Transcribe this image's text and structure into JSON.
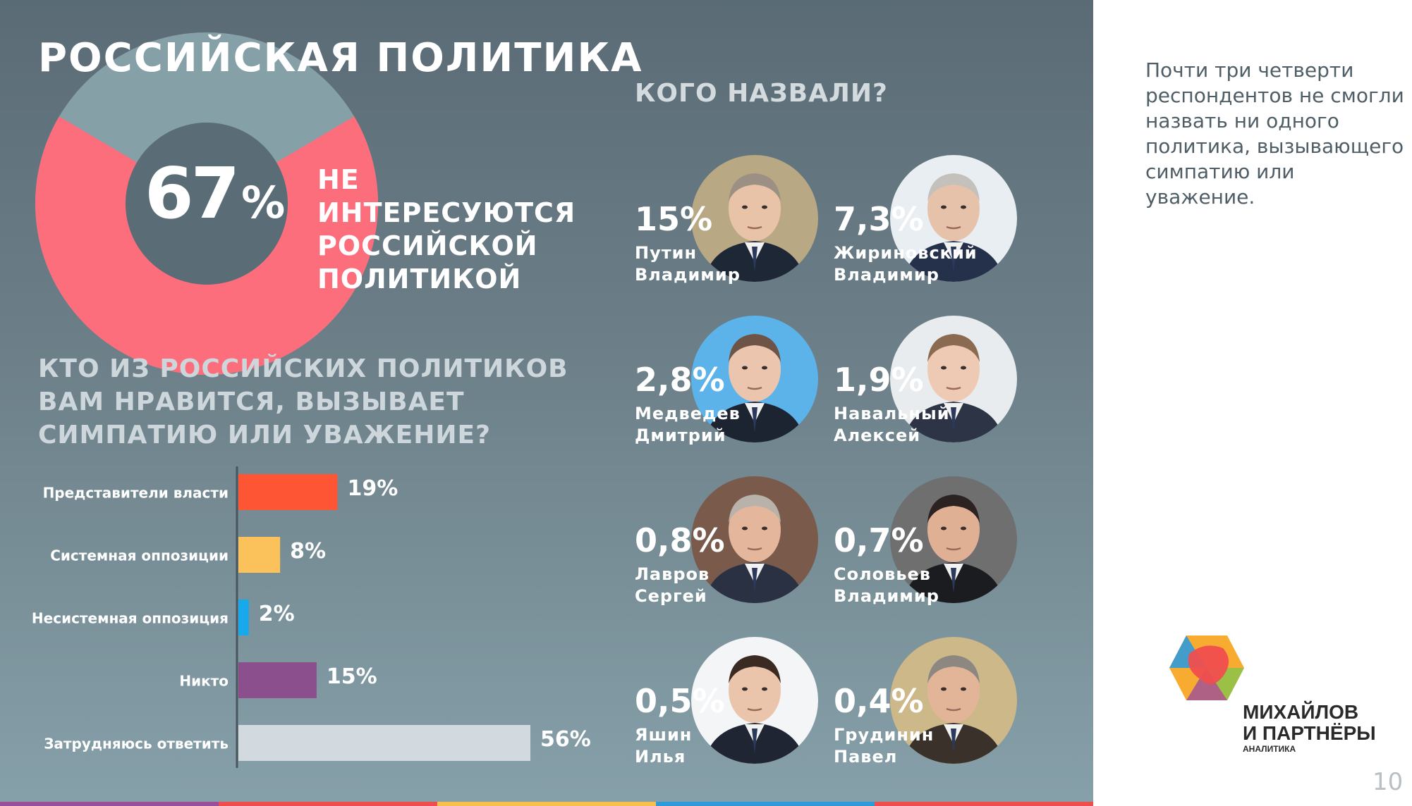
{
  "header": {
    "title": "РОССИЙСКАЯ ПОЛИТИКА"
  },
  "donut": {
    "value": 67,
    "value_label": "67",
    "pct_sign": "%",
    "caption": "НЕ ИНТЕРЕСУЮТСЯ РОССИЙСКОЙ ПОЛИТИКОЙ",
    "colors": {
      "main": "#fd6e7c",
      "rest": "#86a0a8",
      "hole": "#5a6c76"
    }
  },
  "question": "КТО ИЗ РОССИЙСКИХ ПОЛИТИКОВ ВАМ НРАВИТСЯ, ВЫЗЫВАЕТ СИМПАТИЮ ИЛИ УВАЖЕНИЕ?",
  "chart_data": [
    {
      "type": "pie",
      "categories": [
        "НЕ ИНТЕРЕСУЮТСЯ РОССИЙСКОЙ ПОЛИТИКОЙ",
        ""
      ],
      "values": [
        67,
        33
      ],
      "colors": [
        "#fd6e7c",
        "#86a0a8"
      ]
    },
    {
      "type": "bar",
      "orientation": "horizontal",
      "categories": [
        "Представители власти",
        "Системная оппозиции",
        "Несистемная оппозиция",
        "Никто",
        "Затрудняюсь ответить"
      ],
      "values": [
        19,
        8,
        2,
        15,
        56
      ],
      "labels": [
        "19%",
        "8%",
        "2%",
        "15%",
        "56%"
      ],
      "colors": [
        "#fe5535",
        "#fbc25c",
        "#18a9ec",
        "#8b4f8e",
        "#d3dadf"
      ],
      "xlim": [
        0,
        56
      ]
    }
  ],
  "who": {
    "title": "КОГО НАЗВАЛИ?",
    "people": [
      {
        "pct": "15%",
        "surname": "Путин",
        "given": "Владимир",
        "photo_bg": "#b9a884",
        "skin": "#e9c3a8",
        "hair": "#9c8f84",
        "suit": "#1e2735"
      },
      {
        "pct": "7,3%",
        "surname": "Жириновский",
        "given": "Владимир",
        "photo_bg": "#e9eef2",
        "skin": "#e7c2aa",
        "hair": "#c4c1bd",
        "suit": "#25304a"
      },
      {
        "pct": "2,8%",
        "surname": "Медведев",
        "given": "Дмитрий",
        "photo_bg": "#5bb3ea",
        "skin": "#ebc5ae",
        "hair": "#6d5447",
        "suit": "#1c2331"
      },
      {
        "pct": "1,9%",
        "surname": "Навальный",
        "given": "Алексей",
        "photo_bg": "#e8ecee",
        "skin": "#eec9b3",
        "hair": "#8b6a52",
        "suit": "#2c3446"
      },
      {
        "pct": "0,8%",
        "surname": "Лавров",
        "given": "Сергей",
        "photo_bg": "#7a5a4a",
        "skin": "#e4b79c",
        "hair": "#b8b2aa",
        "suit": "#2a3142"
      },
      {
        "pct": "0,7%",
        "surname": "Соловьев",
        "given": "Владимир",
        "photo_bg": "#6f6f70",
        "skin": "#e0b094",
        "hair": "#2a2321",
        "suit": "#1b1c20"
      },
      {
        "pct": "0,5%",
        "surname": "Яшин",
        "given": "Илья",
        "photo_bg": "#f3f5f6",
        "skin": "#ebc4ac",
        "hair": "#3a2a22",
        "suit": "#1f2533"
      },
      {
        "pct": "0,4%",
        "surname": "Грудинин",
        "given": "Павел",
        "photo_bg": "#cdb88a",
        "skin": "#e3b598",
        "hair": "#8c8781",
        "suit": "#39312a"
      }
    ]
  },
  "note": "Почти три четверти респондентов не смогли назвать ни одного политика, вызывающего симпатию или уважение.",
  "logo": {
    "line1": "МИХАЙЛОВ",
    "line2": "И ПАРТНЁРЫ",
    "sub": "АНАЛИТИКА",
    "colors": [
      "#f04e4e",
      "#f7a21b",
      "#2d9bdb",
      "#8bc34a",
      "#9b4f9a"
    ]
  },
  "page_number": "10",
  "stripe_colors": [
    "#9b4f9a",
    "#f04e4e",
    "#f7c04a",
    "#2d9bdb",
    "#f04e4e"
  ]
}
